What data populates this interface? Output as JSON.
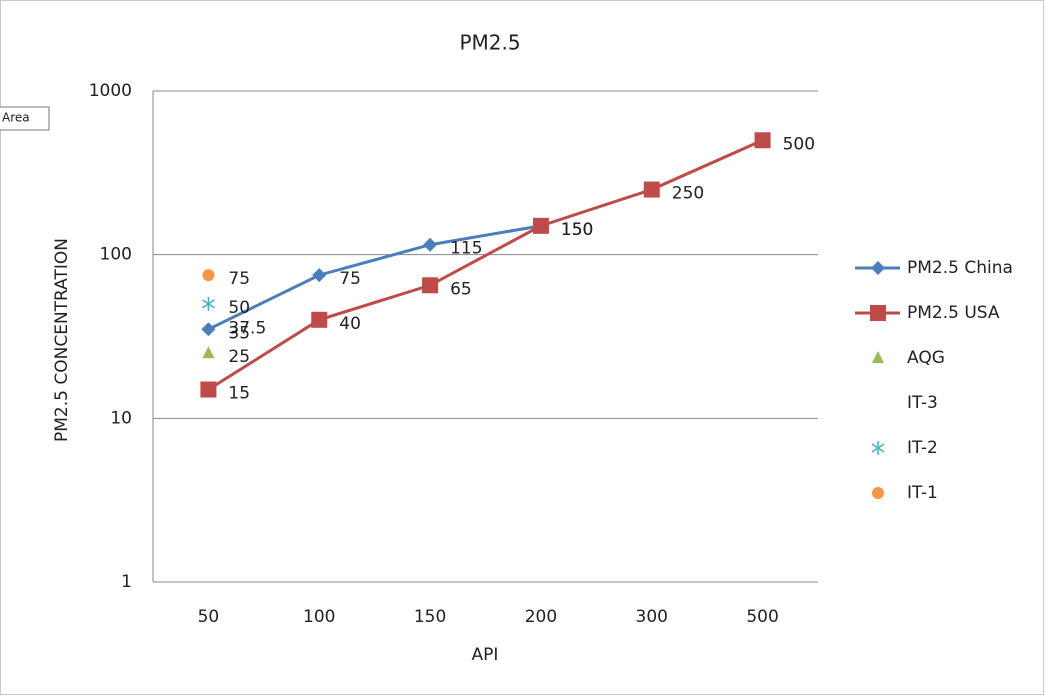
{
  "tooltip": "Area",
  "chart_data": {
    "type": "line",
    "title": "PM2.5",
    "x_label": "API",
    "y_label": "PM2.5  CONCENTRATION",
    "categories": [
      "50",
      "100",
      "150",
      "200",
      "300",
      "500"
    ],
    "log_scale": true,
    "ylim": [
      1,
      1000
    ],
    "yticks": [
      1,
      10,
      100,
      1000
    ],
    "grid": true,
    "legend": "right",
    "data_labels": true,
    "series": [
      {
        "name": "PM2.5 China",
        "color": "#4a7ebb",
        "marker": "diamond",
        "line": true,
        "values": [
          35,
          75,
          115,
          150,
          null,
          null
        ]
      },
      {
        "name": "PM2.5 USA",
        "color": "#be4b48",
        "marker": "square",
        "line": true,
        "values": [
          15,
          40,
          65,
          150,
          250,
          500
        ]
      },
      {
        "name": "AQG",
        "color": "#9bbb59",
        "marker": "triangle",
        "line": false,
        "values": [
          25,
          null,
          null,
          null,
          null,
          null
        ]
      },
      {
        "name": "IT-3",
        "color": "#8064a2",
        "marker": "none",
        "line": false,
        "values": [
          37.5,
          null,
          null,
          null,
          null,
          null
        ]
      },
      {
        "name": "IT-2",
        "color": "#4bacc6",
        "marker": "asterisk",
        "line": false,
        "values": [
          50,
          null,
          null,
          null,
          null,
          null
        ]
      },
      {
        "name": "IT-1",
        "color": "#f79646",
        "marker": "circle",
        "line": false,
        "values": [
          75,
          null,
          null,
          null,
          null,
          null
        ]
      }
    ]
  }
}
